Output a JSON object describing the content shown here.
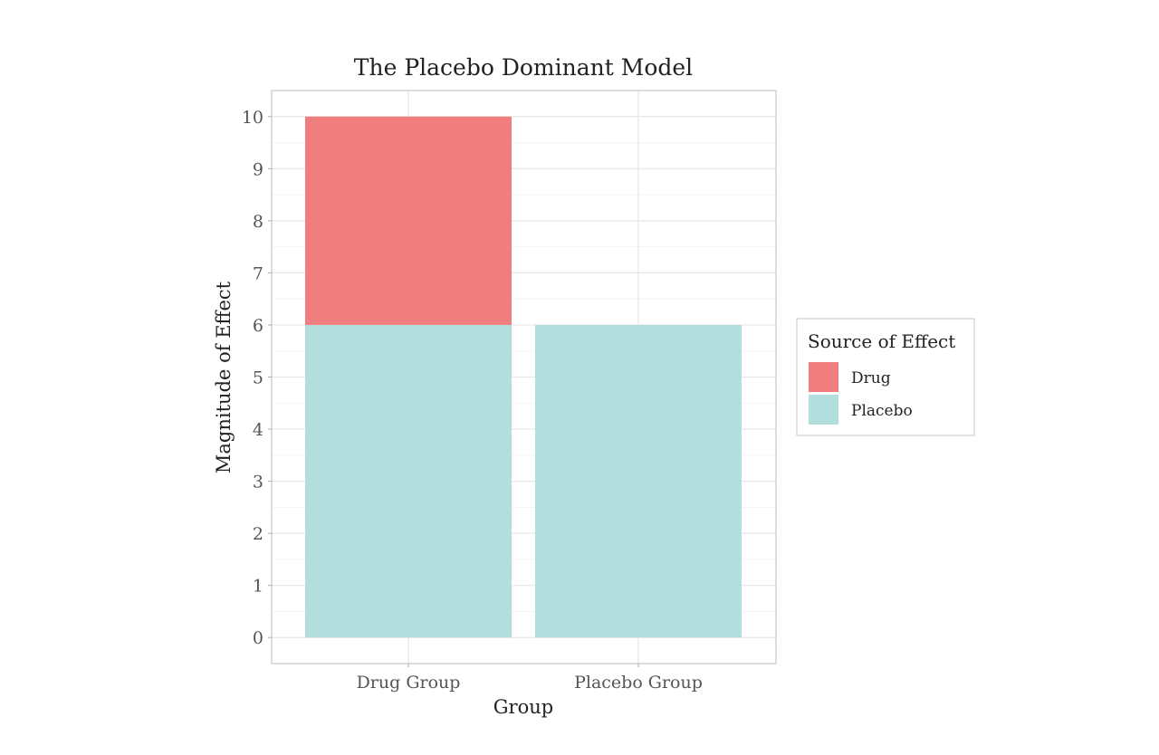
{
  "chart_data": {
    "type": "bar",
    "stacked": true,
    "title": "The Placebo Dominant Model",
    "xlabel": "Group",
    "ylabel": "Magnitude of Effect",
    "categories": [
      "Drug Group",
      "Placebo Group"
    ],
    "series": [
      {
        "name": "Placebo",
        "values": [
          6,
          6
        ],
        "color": "#B2DFDD"
      },
      {
        "name": "Drug",
        "values": [
          4,
          0
        ],
        "color": "#F17E7E"
      }
    ],
    "ylim": [
      -0.5,
      10.5
    ],
    "yticks": [
      0,
      1,
      2,
      3,
      4,
      5,
      6,
      7,
      8,
      9,
      10
    ],
    "grid": true,
    "legend": {
      "title": "Source of Effect",
      "placement": "right",
      "entries": [
        {
          "label": "Drug",
          "color": "#F17E7E"
        },
        {
          "label": "Placebo",
          "color": "#B2DFDD"
        }
      ]
    }
  }
}
